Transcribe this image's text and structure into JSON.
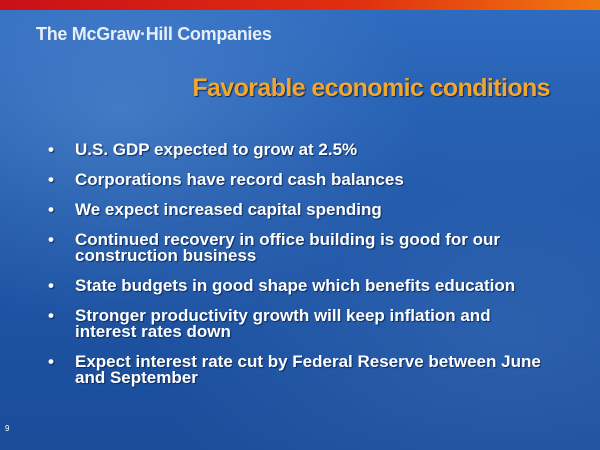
{
  "header": {
    "logo": "The McGraw·Hill Companies"
  },
  "title": "Favorable economic conditions",
  "bullets": [
    "U.S. GDP expected to grow at 2.5%",
    "Corporations have record cash balances",
    "We expect increased capital spending",
    "Continued recovery in office building is good for our construction business",
    "State budgets in good shape which benefits education",
    "Stronger productivity growth will keep inflation and interest rates down",
    "Expect interest rate cut by Federal Reserve between June and September"
  ],
  "page_number": "9"
}
